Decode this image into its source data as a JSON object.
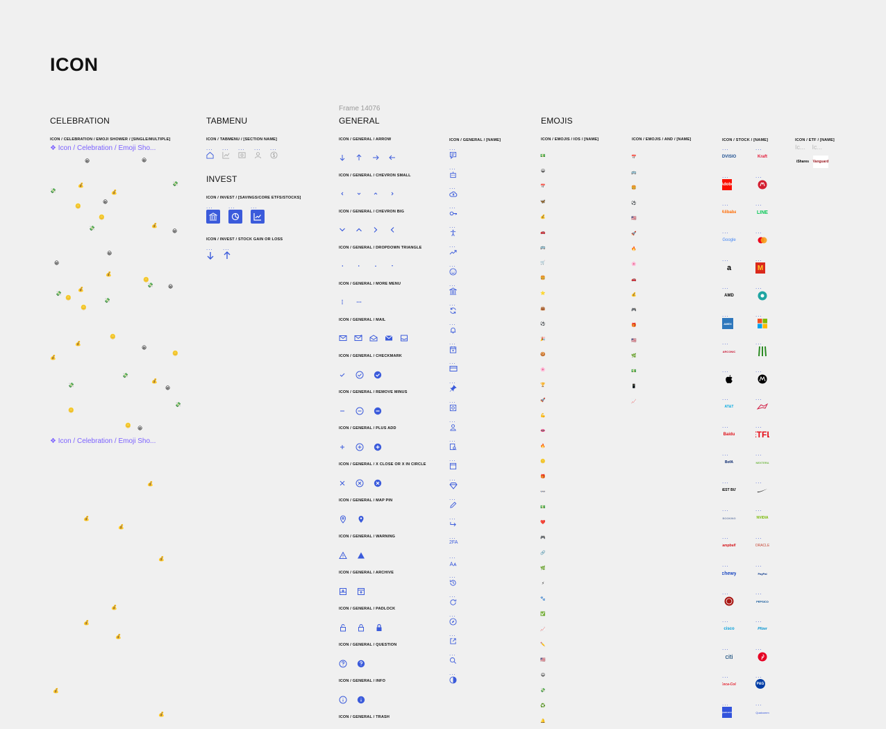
{
  "page": {
    "title": "ICON"
  },
  "celebration": {
    "title": "CELEBRATION",
    "sub": "ICON / CELEBRATION / EMOJI SHOWER / [SINGLE/MULTIPLE]",
    "component1": "❖ Icon / Celebration / Emoji Sho...",
    "component2": "❖ Icon / Celebration / Emoji Sho..."
  },
  "tabmenu": {
    "title": "TABMENU",
    "sub": "ICON / TABMENU / [SECTION NAME]",
    "dots": "..."
  },
  "invest": {
    "title": "INVEST",
    "sub1": "ICON / INVEST / [SAVINGS/CORE ETFS/STOCKS]",
    "sub2": "ICON / INVEST / STOCK GAIN OR LOSS",
    "dots": "..."
  },
  "general": {
    "frame_label": "Frame 14076",
    "title": "GENERAL",
    "groups": [
      "ICON / GENERAL / ARROW",
      "ICON / GENERAL / CHEVRON SMALL",
      "ICON / GENERAL / CHEVRON BIG",
      "ICON / GENERAL / DROPDOWN TRIANGLE",
      "ICON / GENERAL / MORE MENU",
      "ICON / GENERAL / MAIL",
      "ICON / GENERAL / CHECKMARK",
      "ICON / GENERAL / REMOVE MINUS",
      "ICON / GENERAL / PLUS ADD",
      "ICON / GENERAL / X CLOSE OR X IN CIRCLE",
      "ICON / GENERAL / MAP PIN",
      "ICON / GENERAL / WARNING",
      "ICON / GENERAL / ARCHIVE",
      "ICON / GENERAL / PADLOCK",
      "ICON / GENERAL / QUESTION",
      "ICON / GENERAL / INFO",
      "ICON / GENERAL / TRASH"
    ],
    "name_sub": "ICON / GENERAL / [NAME]",
    "dots": "...",
    "twofa": "2FA"
  },
  "emojis": {
    "title": "EMOJIS",
    "sub_ios": "ICON / EMOJIS / IOS / [NAME]",
    "sub_and": "ICON / EMOJIS / AND / [NAME]"
  },
  "stock": {
    "sub": "ICON / STOCK / [NAME]",
    "dots": "...",
    "left": [
      "ADVISION",
      "Adobe",
      "Alibaba",
      "Google",
      "a",
      "AMD",
      "AMEX",
      "ARCONIC",
      "",
      "AT&T",
      "Baidu",
      "BofA",
      "BEST BUY",
      "BOOKING",
      "Campbell's",
      "chewy",
      "",
      "cisco",
      "citi",
      "Coca-Cola",
      "Qualcomm"
    ],
    "right": [
      "Kraft",
      "lululemon",
      "LINE",
      "Mastercard",
      "M",
      "",
      "Microsoft",
      "Monster",
      "Motorola",
      "",
      "NETFLIX",
      "NEXTERA",
      "Nike",
      "NVIDIA",
      "ORACLE",
      "PayPal",
      "PEPSICO",
      "Pfizer",
      "Pinterest",
      "P&G",
      "Qualcomm"
    ]
  },
  "etf": {
    "sub": "ICON / ETF / [NAME]",
    "ic1": "Ic...",
    "ic2": "Ic...",
    "ishares": "iShares",
    "vanguard": "Vanguard"
  }
}
